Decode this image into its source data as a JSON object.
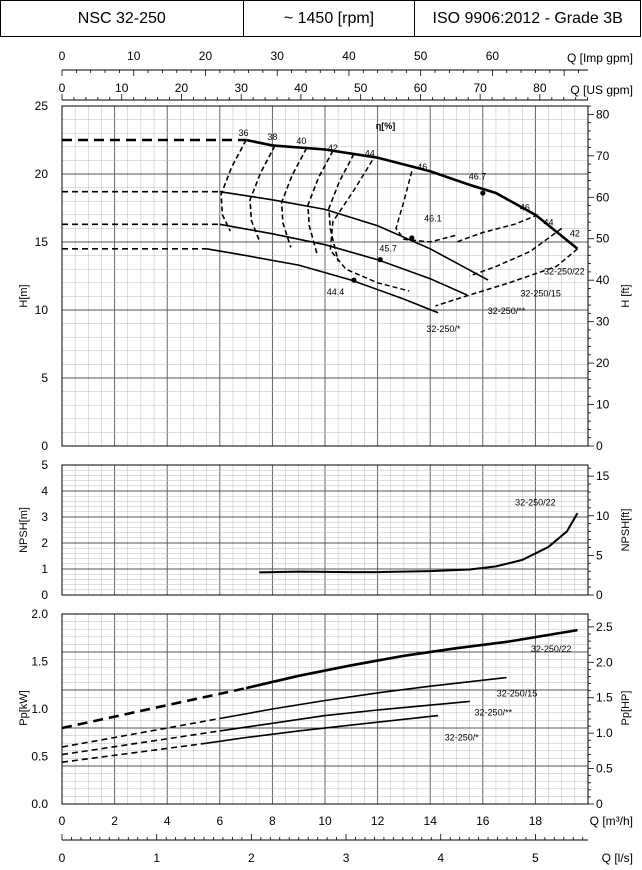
{
  "header": {
    "model": "NSC 32-250",
    "speed": "~ 1450 [rpm]",
    "standard": "ISO 9906:2012 - Grade 3B"
  },
  "axes": {
    "q_imp_gpm": {
      "label": "Q [Imp gpm]",
      "ticks": [
        0,
        10,
        20,
        30,
        40,
        50,
        60
      ]
    },
    "q_us_gpm": {
      "label": "Q [US gpm]",
      "ticks": [
        0,
        10,
        20,
        30,
        40,
        50,
        60,
        70,
        80
      ]
    },
    "h_m": {
      "label": "H[m]",
      "ticks": [
        0,
        5,
        10,
        15,
        20,
        25
      ]
    },
    "h_ft": {
      "label": "H [ft]",
      "ticks": [
        0,
        10,
        20,
        30,
        40,
        50,
        60,
        70,
        80
      ]
    },
    "npsh_m": {
      "label": "NPSH[m]",
      "ticks": [
        0,
        1,
        2,
        3,
        4,
        5
      ]
    },
    "npsh_ft": {
      "label": "NPSH[ft]",
      "ticks": [
        0,
        5,
        10,
        15
      ]
    },
    "p_kw": {
      "label": "Pp[kW]",
      "ticks": [
        "0.0",
        "0.5",
        "1.0",
        "1.5",
        "2.0"
      ]
    },
    "p_hp": {
      "label": "Pp[HP]",
      "ticks": [
        "0",
        "0.5",
        "1.0",
        "1.5",
        "2.0",
        "2.5"
      ]
    },
    "q_m3h": {
      "label": "Q [m³/h]",
      "ticks": [
        0,
        2,
        4,
        6,
        8,
        10,
        12,
        14,
        16,
        18
      ]
    },
    "q_ls": {
      "label": "Q [l/s]",
      "ticks": [
        0,
        1,
        2,
        3,
        4,
        5
      ]
    }
  },
  "chart_data": [
    {
      "type": "line",
      "title": "",
      "xlabel": "Q [m³/h]",
      "ylabel": "H[m]",
      "xlim": [
        0,
        20
      ],
      "ylim": [
        0,
        25
      ],
      "series": [
        {
          "name": "32-250/22",
          "dashed_x": [
            0,
            7
          ],
          "x": [
            7,
            8,
            10,
            12,
            14,
            15.5,
            16.5,
            18,
            19.6
          ],
          "y": [
            22.5,
            22.1,
            21.8,
            21.2,
            20.2,
            19.2,
            18.6,
            17,
            14.5
          ]
        },
        {
          "name": "32-250/15",
          "dashed_x": [
            0,
            6
          ],
          "x": [
            6,
            8,
            10,
            12,
            14,
            16.2
          ],
          "y": [
            18.7,
            18.1,
            17.4,
            16.2,
            14.5,
            12.2
          ]
        },
        {
          "name": "32-250/**",
          "dashed_x": [
            0,
            6
          ],
          "x": [
            6,
            8,
            10,
            12,
            14,
            15.4
          ],
          "y": [
            16.3,
            15.6,
            14.8,
            13.7,
            12.3,
            11.1
          ]
        },
        {
          "name": "32-250/*",
          "dashed_x": [
            0,
            5.5
          ],
          "x": [
            5.5,
            7,
            9,
            11,
            13,
            14.3
          ],
          "y": [
            14.5,
            14.0,
            13.3,
            12.2,
            10.8,
            9.8
          ]
        }
      ],
      "efficiency_label": "η[%]",
      "efficiency_contours": [
        "36",
        "38",
        "40",
        "42",
        "44",
        "46",
        "46.7",
        "46",
        "44",
        "42",
        "46.1",
        "45.7",
        "44.4"
      ],
      "model_labels": [
        "32-250/22",
        "32-250/15",
        "32-250/**",
        "32-250/*"
      ]
    },
    {
      "type": "line",
      "xlabel": "Q [m³/h]",
      "ylabel": "NPSH[m]",
      "xlim": [
        0,
        20
      ],
      "ylim": [
        0,
        5
      ],
      "series": [
        {
          "name": "32-250/22",
          "x": [
            7.5,
            9,
            11,
            12,
            14,
            15.5,
            16.5,
            17.5,
            18.5,
            19.2,
            19.6
          ],
          "y": [
            0.87,
            0.9,
            0.88,
            0.88,
            0.92,
            0.98,
            1.1,
            1.35,
            1.85,
            2.45,
            3.15
          ]
        }
      ]
    },
    {
      "type": "line",
      "xlabel": "Q [m³/h]",
      "ylabel": "Pp[kW]",
      "xlim": [
        0,
        20
      ],
      "ylim": [
        0,
        2
      ],
      "series": [
        {
          "name": "32-250/22",
          "dashed_x": [
            0,
            7
          ],
          "x": [
            0,
            7,
            9,
            11,
            13,
            15,
            17,
            19.6
          ],
          "y": [
            0.8,
            1.22,
            1.35,
            1.46,
            1.56,
            1.64,
            1.71,
            1.83
          ]
        },
        {
          "name": "32-250/15",
          "dashed_x": [
            0,
            6
          ],
          "x": [
            0,
            6,
            8,
            10,
            12,
            14,
            16.9
          ],
          "y": [
            0.6,
            0.9,
            1.0,
            1.09,
            1.17,
            1.24,
            1.33
          ]
        },
        {
          "name": "32-250/**",
          "dashed_x": [
            0,
            6
          ],
          "x": [
            0,
            6,
            8,
            10,
            12,
            15.5
          ],
          "y": [
            0.52,
            0.77,
            0.85,
            0.93,
            0.99,
            1.08
          ]
        },
        {
          "name": "32-250/*",
          "dashed_x": [
            0,
            5.5
          ],
          "x": [
            0,
            5.5,
            7,
            9,
            11,
            14.3
          ],
          "y": [
            0.44,
            0.64,
            0.7,
            0.77,
            0.83,
            0.93
          ]
        }
      ]
    }
  ]
}
